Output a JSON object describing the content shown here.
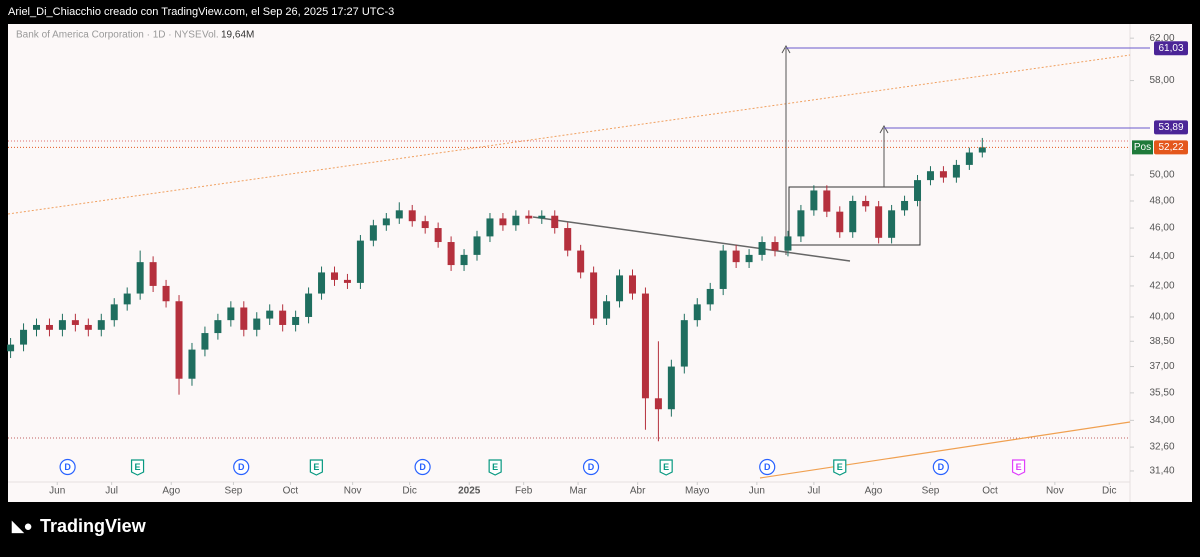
{
  "top_bar": "Ariel_Di_Chiacchio creado con TradingView.com, el Sep 26, 2025 17:27 UTC-3",
  "footer": {
    "logo": "TradingView"
  },
  "chart_data": {
    "type": "candlestick",
    "title": "Bank of America Corporation · 1D · NYSE",
    "volume_label": "Vol.",
    "volume_value": "19,64M",
    "x": [
      0,
      5,
      10,
      15,
      20,
      25,
      30,
      35,
      40,
      45,
      50,
      55,
      60,
      65,
      70,
      75,
      80,
      85,
      90,
      95,
      100,
      105,
      110,
      115,
      120,
      125,
      130,
      135,
      140,
      145,
      150,
      155,
      160,
      165,
      170,
      175,
      180,
      185,
      190,
      195,
      200,
      205,
      210,
      215,
      220,
      225,
      230,
      235,
      240,
      245,
      250,
      255,
      260,
      265,
      270,
      275,
      280,
      285,
      290,
      295,
      300,
      305,
      310,
      315,
      320,
      325,
      330,
      335,
      340,
      345,
      350,
      355,
      360,
      365,
      370,
      375
    ],
    "open": [
      37.9,
      38.3,
      39.2,
      39.5,
      39.2,
      39.8,
      39.5,
      39.2,
      39.8,
      40.8,
      41.5,
      43.6,
      42.0,
      41.0,
      36.3,
      38.0,
      39.0,
      39.8,
      40.6,
      39.2,
      39.9,
      40.4,
      39.5,
      40.0,
      41.5,
      42.9,
      42.4,
      42.2,
      45.1,
      46.2,
      46.7,
      47.3,
      46.5,
      46.0,
      45.0,
      43.4,
      44.1,
      45.4,
      46.7,
      46.2,
      46.9,
      46.7,
      46.9,
      46.0,
      44.4,
      42.9,
      39.9,
      41.0,
      42.7,
      41.5,
      35.2,
      34.6,
      37.0,
      39.8,
      40.8,
      41.8,
      44.4,
      43.6,
      44.1,
      45.0,
      44.4,
      45.4,
      47.3,
      48.8,
      47.2,
      45.7,
      48.0,
      47.6,
      45.3,
      47.3,
      48.0,
      49.6,
      50.3,
      49.8,
      50.8,
      51.8
    ],
    "high": [
      38.7,
      39.6,
      39.9,
      39.9,
      40.2,
      40.2,
      39.9,
      40.2,
      41.2,
      41.9,
      44.4,
      44.0,
      42.4,
      41.4,
      38.4,
      39.4,
      40.2,
      41.0,
      41.0,
      40.3,
      40.8,
      40.8,
      40.4,
      41.9,
      43.3,
      43.3,
      42.8,
      45.5,
      46.6,
      47.1,
      47.9,
      47.7,
      46.9,
      46.4,
      45.4,
      44.5,
      45.8,
      47.1,
      47.1,
      47.3,
      47.3,
      47.3,
      47.3,
      46.4,
      44.8,
      43.3,
      41.4,
      43.1,
      43.1,
      41.9,
      38.5,
      37.4,
      40.2,
      41.2,
      42.2,
      44.8,
      44.8,
      44.5,
      45.4,
      45.4,
      45.8,
      47.7,
      49.2,
      49.2,
      47.6,
      48.4,
      48.4,
      48.0,
      47.7,
      48.4,
      50.0,
      50.7,
      50.7,
      51.2,
      52.2,
      53.0
    ],
    "low": [
      37.5,
      37.9,
      38.8,
      38.8,
      38.8,
      39.1,
      38.8,
      38.8,
      39.4,
      40.4,
      41.1,
      41.6,
      40.6,
      35.4,
      35.9,
      37.6,
      38.6,
      39.4,
      38.8,
      38.8,
      39.5,
      39.1,
      39.1,
      39.6,
      41.1,
      42.0,
      41.8,
      41.8,
      44.7,
      45.8,
      46.3,
      46.1,
      45.6,
      44.6,
      43.0,
      43.0,
      43.7,
      45.0,
      45.8,
      45.8,
      46.3,
      46.3,
      45.6,
      44.0,
      42.5,
      39.5,
      39.5,
      40.6,
      41.1,
      33.5,
      32.9,
      34.2,
      36.6,
      39.4,
      40.4,
      41.4,
      43.2,
      43.2,
      43.7,
      44.0,
      44.0,
      45.0,
      46.9,
      46.8,
      45.3,
      45.3,
      47.2,
      44.9,
      44.9,
      46.9,
      47.6,
      49.2,
      49.4,
      49.4,
      50.4,
      51.4
    ],
    "close": [
      38.3,
      39.2,
      39.5,
      39.2,
      39.8,
      39.5,
      39.2,
      39.8,
      40.8,
      41.5,
      43.6,
      42.0,
      41.0,
      36.3,
      38.0,
      39.0,
      39.8,
      40.6,
      39.2,
      39.9,
      40.4,
      39.5,
      40.0,
      41.5,
      42.9,
      42.4,
      42.2,
      45.1,
      46.2,
      46.7,
      47.3,
      46.5,
      46.0,
      45.0,
      43.4,
      44.1,
      45.4,
      46.7,
      46.2,
      46.9,
      46.7,
      46.9,
      46.0,
      44.4,
      42.9,
      39.9,
      41.0,
      42.7,
      41.5,
      35.2,
      34.6,
      37.0,
      39.8,
      40.8,
      41.8,
      44.4,
      43.6,
      44.1,
      45.0,
      44.4,
      45.4,
      47.3,
      48.8,
      47.2,
      45.7,
      48.0,
      47.6,
      45.3,
      47.3,
      48.0,
      49.6,
      50.3,
      49.8,
      50.8,
      51.8,
      52.22
    ],
    "up_color": "#1f6e5f",
    "down_color": "#b5303d",
    "xlim": [
      -1,
      432
    ],
    "xticks": [
      {
        "value": 18,
        "label": "Jun"
      },
      {
        "value": 39,
        "label": "Jul"
      },
      {
        "value": 62,
        "label": "Ago"
      },
      {
        "value": 86,
        "label": "Sep"
      },
      {
        "value": 108,
        "label": "Oct"
      },
      {
        "value": 132,
        "label": "Nov"
      },
      {
        "value": 154,
        "label": "Dic"
      },
      {
        "value": 177,
        "label": "2025"
      },
      {
        "value": 198,
        "label": "Feb"
      },
      {
        "value": 219,
        "label": "Mar"
      },
      {
        "value": 242,
        "label": "Abr"
      },
      {
        "value": 265,
        "label": "Mayo"
      },
      {
        "value": 288,
        "label": "Jun"
      },
      {
        "value": 310,
        "label": "Jul"
      },
      {
        "value": 333,
        "label": "Ago"
      },
      {
        "value": 355,
        "label": "Sep"
      },
      {
        "value": 378,
        "label": "Oct"
      },
      {
        "value": 403,
        "label": "Nov"
      },
      {
        "value": 424,
        "label": "Dic"
      }
    ],
    "ylim": [
      30.86,
      62.8
    ],
    "log_scale": true,
    "yticks": [
      {
        "value": 62,
        "label": "62,00"
      },
      {
        "value": 58,
        "label": "58,00"
      },
      {
        "value": 50,
        "label": "50,00"
      },
      {
        "value": 48,
        "label": "48,00"
      },
      {
        "value": 46,
        "label": "46,00"
      },
      {
        "value": 44,
        "label": "44,00"
      },
      {
        "value": 42,
        "label": "42,00"
      },
      {
        "value": 40,
        "label": "40,00"
      },
      {
        "value": 38.5,
        "label": "38,50"
      },
      {
        "value": 37,
        "label": "37,00"
      },
      {
        "value": 35.5,
        "label": "35,50"
      },
      {
        "value": 34,
        "label": "34,00"
      },
      {
        "value": 32.6,
        "label": "32,60"
      },
      {
        "value": 31.4,
        "label": "31,40"
      }
    ],
    "price_labels": [
      {
        "value": 61.03,
        "label": "61,03",
        "color": "#4b2597"
      },
      {
        "value": 53.89,
        "label": "53,89",
        "color": "#4b2597"
      },
      {
        "value": 52.22,
        "label": "52,22",
        "color": "#e4571c",
        "tag": "Pos",
        "tag_color": "#1f7a3a"
      }
    ],
    "event_markers": [
      {
        "x": 22,
        "label": "D",
        "color": "#2962ff"
      },
      {
        "x": 49,
        "label": "E",
        "color": "#089981"
      },
      {
        "x": 89,
        "label": "D",
        "color": "#2962ff"
      },
      {
        "x": 118,
        "label": "E",
        "color": "#089981"
      },
      {
        "x": 159,
        "label": "D",
        "color": "#2962ff"
      },
      {
        "x": 187,
        "label": "E",
        "color": "#089981"
      },
      {
        "x": 224,
        "label": "D",
        "color": "#2962ff"
      },
      {
        "x": 253,
        "label": "E",
        "color": "#089981"
      },
      {
        "x": 292,
        "label": "D",
        "color": "#2962ff"
      },
      {
        "x": 320,
        "label": "E",
        "color": "#089981"
      },
      {
        "x": 359,
        "label": "D",
        "color": "#2962ff"
      },
      {
        "x": 389,
        "label": "E",
        "color": "#e040fb"
      }
    ]
  }
}
